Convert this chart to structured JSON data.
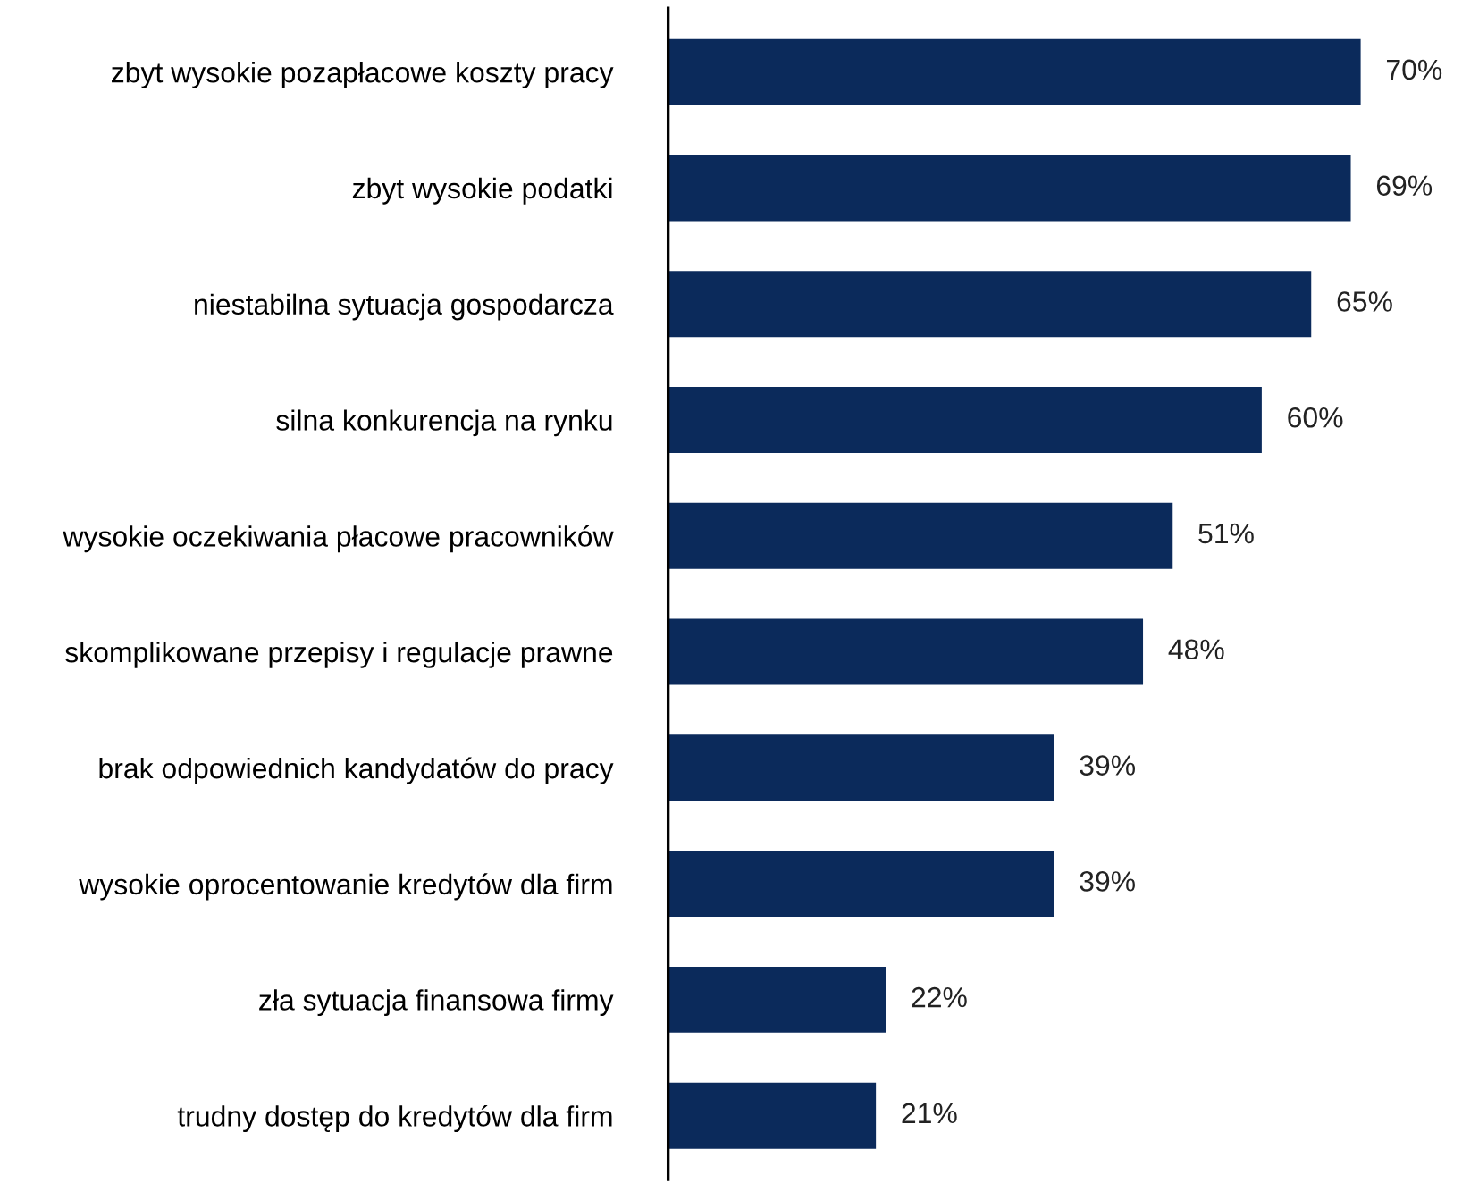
{
  "chart_data": {
    "type": "bar",
    "orientation": "horizontal",
    "categories": [
      "zbyt wysokie pozapłacowe koszty pracy",
      "zbyt wysokie podatki",
      "niestabilna sytuacja gospodarcza",
      "silna konkurencja na rynku",
      "wysokie oczekiwania płacowe pracowników",
      "skomplikowane przepisy i regulacje prawne",
      "brak odpowiednich kandydatów do pracy",
      "wysokie oprocentowanie kredytów dla firm",
      "zła sytuacja finansowa firmy",
      "trudny dostęp do kredytów dla firm"
    ],
    "values": [
      70,
      69,
      65,
      60,
      51,
      48,
      39,
      39,
      22,
      21
    ],
    "value_labels": [
      "70%",
      "69%",
      "65%",
      "60%",
      "51%",
      "48%",
      "39%",
      "39%",
      "22%",
      "21%"
    ],
    "color": "#0b2a5b",
    "grid": false,
    "legend": false
  }
}
